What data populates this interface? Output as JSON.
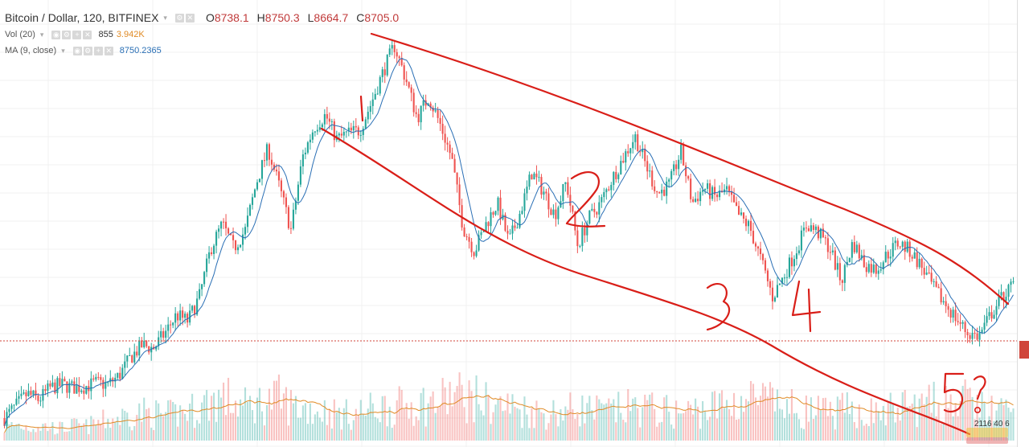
{
  "legend": {
    "symbol": "Bitcoin / Dollar, 120, BITFINEX",
    "open_label": "O",
    "open": "8738.1",
    "high_label": "H",
    "high": "8750.3",
    "low_label": "L",
    "low": "8664.7",
    "close_label": "C",
    "close": "8705.0"
  },
  "volume_legend": {
    "label": "Vol (20)",
    "value": "855",
    "ma_value": "3.942K"
  },
  "ma_legend": {
    "label": "MA (9, close)",
    "value": "8750.2365"
  },
  "annotations": {
    "wave_1": "1",
    "wave_2": "2",
    "wave_3": "3",
    "wave_4": "4",
    "wave_5": "5?"
  },
  "bottom_hint": "2116 40 6",
  "colors": {
    "up": "#26a69a",
    "down": "#ef5350",
    "ma": "#2a6fb5",
    "vol_ma": "#e08a24",
    "drawing": "#d91e18",
    "last_price": "#d0453b",
    "grid": "#f0f0f0"
  },
  "chart_data": {
    "type": "candlestick",
    "series": [
      {
        "name": "Bitcoin / Dollar",
        "close": [
          6500,
          6700,
          6900,
          6800,
          7000,
          7050,
          7000,
          7020,
          7080,
          7050,
          7200,
          7500,
          7700,
          7650,
          7900,
          8200,
          8100,
          8500,
          9300,
          9700,
          9300,
          9600,
          10400,
          10950,
          10300,
          9600,
          10800,
          11300,
          11500,
          11100,
          11200,
          11250,
          11700,
          12200,
          12650,
          12100,
          11450,
          11800,
          11350,
          10800,
          9650,
          9250,
          9700,
          10050,
          9400,
          9900,
          10550,
          10250,
          9850,
          10400,
          9350,
          9800,
          10050,
          10450,
          10800,
          11150,
          10650,
          10200,
          10350,
          10900,
          10050,
          10300,
          10150,
          10250,
          9850,
          9650,
          9100,
          8500,
          8850,
          9250,
          9700,
          9550,
          9300,
          8750,
          9400,
          9050,
          8950,
          9200,
          9400,
          9250,
          9000,
          8650,
          8400,
          8150,
          7900,
          7850,
          8200,
          8500,
          8700
        ]
      },
      {
        "name": "Vol (20)",
        "values": [
          0.9,
          1.2,
          1.0,
          1.1,
          1.0,
          0.9,
          1.1,
          1.0,
          1.3,
          1.5,
          1.7,
          1.9,
          2.1,
          2.0,
          1.8,
          2.0,
          2.2,
          2.4,
          3.0,
          3.2,
          2.8,
          2.5,
          2.7,
          2.9,
          3.1,
          2.6,
          2.4,
          2.3,
          2.2,
          2.0,
          1.9,
          2.1,
          2.3,
          2.5,
          2.4,
          2.6,
          2.8,
          2.7,
          2.9,
          3.4,
          3.3,
          3.1,
          2.8,
          2.6,
          2.5,
          2.3,
          2.2,
          2.0,
          2.1,
          2.2,
          2.4,
          2.3,
          2.1,
          2.2,
          2.3,
          2.5,
          2.4,
          2.2,
          2.1,
          2.0,
          2.2,
          2.3,
          2.5,
          2.7,
          2.9,
          3.1,
          3.0,
          2.7,
          2.5,
          2.3,
          2.2,
          2.1,
          2.0,
          2.2,
          2.3,
          2.1,
          2.0,
          2.2,
          2.4,
          2.6,
          2.5,
          2.7,
          2.9,
          3.0,
          2.8,
          2.6,
          2.3,
          2.1,
          2.0
        ]
      }
    ],
    "ylim": [
      6500,
      13000
    ],
    "grid": true
  }
}
